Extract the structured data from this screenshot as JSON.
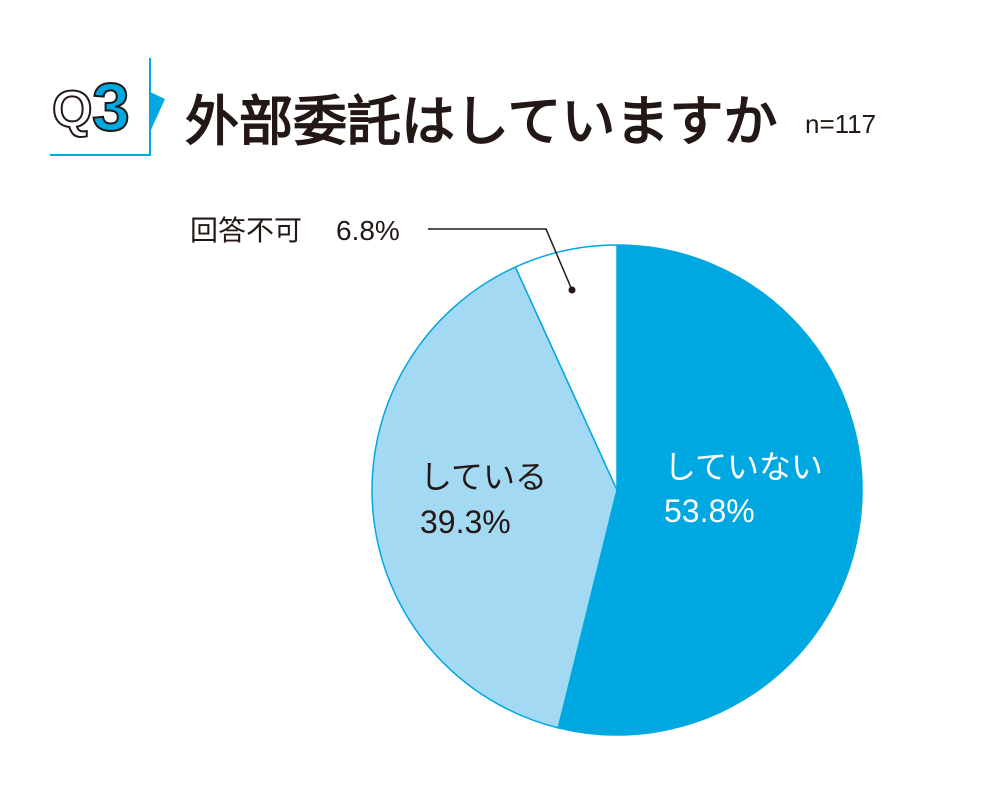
{
  "badge": {
    "letter": "Q",
    "number": "3"
  },
  "colors": {
    "accent": "#00A8E1",
    "light_blue": "#A4D9F3",
    "text": "#231815"
  },
  "chart_data": {
    "type": "pie",
    "title": "外部委託はしていますか",
    "sample_size": "n=117",
    "slices": [
      {
        "label": "していない",
        "value": 53.8,
        "value_label": "53.8%",
        "color": "#00A8E1"
      },
      {
        "label": "している",
        "value": 39.3,
        "value_label": "39.3%",
        "color": "#A4D9F3"
      },
      {
        "label": "回答不可",
        "value": 6.8,
        "value_label": "6.8%",
        "color": "#FFFFFF"
      }
    ]
  }
}
